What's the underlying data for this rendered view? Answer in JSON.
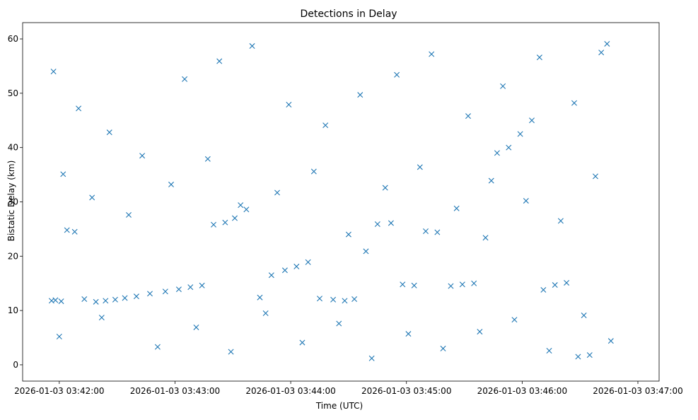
{
  "chart_data": {
    "type": "scatter",
    "title": "Detections in Delay",
    "xlabel": "Time (UTC)",
    "ylabel": "Bistatic Delay (km)",
    "x_unit": "timestamp (UTC)",
    "xlim": [
      "2026-01-03 03:41:41",
      "2026-01-03 03:47:11"
    ],
    "ylim": [
      -3,
      63
    ],
    "x_ticks": [
      "2026-01-03 03:42:00",
      "2026-01-03 03:43:00",
      "2026-01-03 03:44:00",
      "2026-01-03 03:45:00",
      "2026-01-03 03:46:00",
      "2026-01-03 03:47:00"
    ],
    "y_ticks": [
      0,
      10,
      20,
      30,
      40,
      50,
      60
    ],
    "marker": "x",
    "marker_color": "#1f77b4",
    "grid": false,
    "legend": "none",
    "x": [
      "03:41:56",
      "03:41:58",
      "03:42:01",
      "03:42:04",
      "03:42:08",
      "03:42:13",
      "03:42:19",
      "03:42:24",
      "03:42:29",
      "03:42:34",
      "03:42:40",
      "03:42:47",
      "03:42:55",
      "03:43:02",
      "03:43:08",
      "03:43:14",
      "03:43:20",
      "03:43:26",
      "03:43:31",
      "03:43:37",
      "03:43:44",
      "03:43:50",
      "03:43:57",
      "03:44:03",
      "03:44:09",
      "03:44:15",
      "03:44:22",
      "03:44:28",
      "03:44:33",
      "03:44:39",
      "03:44:45",
      "03:44:52",
      "03:44:58",
      "03:45:04",
      "03:45:10",
      "03:45:16",
      "03:45:23",
      "03:45:29",
      "03:45:35",
      "03:45:41",
      "03:45:47",
      "03:45:53",
      "03:45:59",
      "03:46:05",
      "03:46:11",
      "03:46:17",
      "03:46:23",
      "03:46:29",
      "03:46:35",
      "03:46:41",
      "03:41:57",
      "03:42:10",
      "03:42:26",
      "03:42:43",
      "03:43:05",
      "03:43:23",
      "03:43:40",
      "03:43:59",
      "03:44:18",
      "03:44:36",
      "03:44:55",
      "03:45:13",
      "03:45:32",
      "03:45:50",
      "03:46:09",
      "03:46:27",
      "03:46:44",
      "03:42:02",
      "03:42:17",
      "03:42:36",
      "03:42:58",
      "03:43:17",
      "03:43:34",
      "03:43:53",
      "03:44:12",
      "03:44:30",
      "03:44:49",
      "03:45:07",
      "03:45:26",
      "03:45:44",
      "03:46:02",
      "03:46:20",
      "03:46:38",
      "03:42:00",
      "03:42:22",
      "03:42:51",
      "03:43:11",
      "03:43:29",
      "03:43:47",
      "03:44:06",
      "03:44:25",
      "03:44:42",
      "03:45:01",
      "03:45:19",
      "03:45:38",
      "03:45:56",
      "03:46:14",
      "03:46:32",
      "03:46:46"
    ],
    "y": [
      11.8,
      11.9,
      11.7,
      24.8,
      24.5,
      12.1,
      11.6,
      11.8,
      12.0,
      12.3,
      12.6,
      13.1,
      13.5,
      13.9,
      14.3,
      14.6,
      25.8,
      26.2,
      27.0,
      28.6,
      12.4,
      16.5,
      17.4,
      18.1,
      18.9,
      12.2,
      12.0,
      11.8,
      12.1,
      20.9,
      25.9,
      26.1,
      14.8,
      14.6,
      24.6,
      24.4,
      14.5,
      14.8,
      15.0,
      23.4,
      39.0,
      40.0,
      42.5,
      45.0,
      13.8,
      14.7,
      15.1,
      1.5,
      1.8,
      57.5,
      54.0,
      47.2,
      42.8,
      38.5,
      52.6,
      55.9,
      58.7,
      47.9,
      44.1,
      49.7,
      53.4,
      57.2,
      45.8,
      51.3,
      56.6,
      48.2,
      59.1,
      35.1,
      30.8,
      27.6,
      33.2,
      37.9,
      29.4,
      31.7,
      35.6,
      24.0,
      32.6,
      36.4,
      28.8,
      33.9,
      30.2,
      26.5,
      34.7,
      5.2,
      8.7,
      3.3,
      6.9,
      2.4,
      9.5,
      4.1,
      7.6,
      1.2,
      5.7,
      3.0,
      6.1,
      8.3,
      2.6,
      9.1,
      4.4
    ]
  }
}
